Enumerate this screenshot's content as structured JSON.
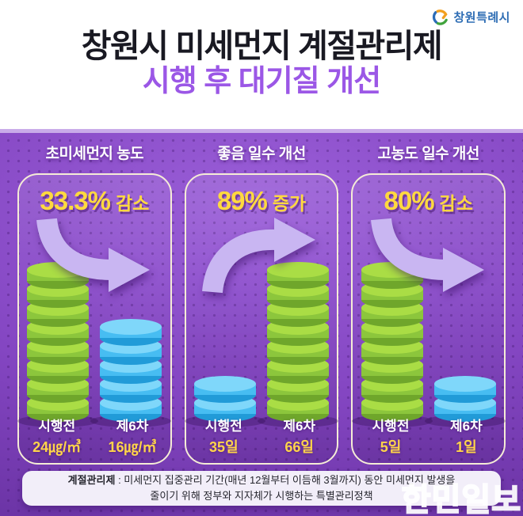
{
  "logo": {
    "text": "창원특례시"
  },
  "title": {
    "line1": "창원시 미세먼지 계절관리제",
    "line2": "시행 후 대기질 개선"
  },
  "panels": [
    {
      "header": "초미세먼지 농도",
      "change": {
        "value": "33.3%",
        "label": "감소",
        "direction": "down"
      },
      "columns": [
        {
          "name": "시행전",
          "value": "24㎍/㎥",
          "coins": 8,
          "color": "green"
        },
        {
          "name": "제6차",
          "value": "16㎍/㎥",
          "coins": 5,
          "color": "blue"
        }
      ]
    },
    {
      "header": "좋음 일수 개선",
      "change": {
        "value": "89%",
        "label": "증가",
        "direction": "up"
      },
      "columns": [
        {
          "name": "시행전",
          "value": "35일",
          "coins": 2,
          "color": "blue"
        },
        {
          "name": "제6차",
          "value": "66일",
          "coins": 8,
          "color": "green"
        }
      ]
    },
    {
      "header": "고농도 일수 개선",
      "change": {
        "value": "80%",
        "label": "감소",
        "direction": "down"
      },
      "columns": [
        {
          "name": "시행전",
          "value": "5일",
          "coins": 8,
          "color": "green"
        },
        {
          "name": "제6차",
          "value": "1일",
          "coins": 2,
          "color": "blue"
        }
      ]
    }
  ],
  "footnote": {
    "term": "계절관리제",
    "line1_rest": " : 미세먼지 집중관리 기간(매년 12월부터 이듬해 3월까지) 동안 미세먼지 발생을",
    "line2": "줄이기 위해 정부와 지자체가 시행하는 특별관리정책"
  },
  "watermark": "한민일보",
  "colors": {
    "stage_purple": "#8446c2",
    "accent_yellow": "#ffd93f",
    "value_yellow": "#ffd44a",
    "card_border": "#f5ecd6",
    "arrow": "#c9b6f2",
    "title": "#191922",
    "subtitle": "#9b57e6",
    "logo_blue": "#2e6db4",
    "coin_green": {
      "top": "#aadd45",
      "side": "#8cc63c",
      "dark": "#6fa62b"
    },
    "coin_blue": {
      "top": "#7fd7fa",
      "side": "#47bdf2",
      "dark": "#219bd8"
    }
  },
  "chart_data": [
    {
      "type": "bar",
      "title": "초미세먼지 농도",
      "categories": [
        "시행전",
        "제6차"
      ],
      "values": [
        24,
        16
      ],
      "unit": "㎍/㎥",
      "annotation": "33.3% 감소",
      "bar_colors": [
        "green",
        "blue"
      ],
      "coin_counts": [
        8,
        5
      ]
    },
    {
      "type": "bar",
      "title": "좋음 일수 개선",
      "categories": [
        "시행전",
        "제6차"
      ],
      "values": [
        35,
        66
      ],
      "unit": "일",
      "annotation": "89% 증가",
      "bar_colors": [
        "blue",
        "green"
      ],
      "coin_counts": [
        2,
        8
      ]
    },
    {
      "type": "bar",
      "title": "고농도 일수 개선",
      "categories": [
        "시행전",
        "제6차"
      ],
      "values": [
        5,
        1
      ],
      "unit": "일",
      "annotation": "80% 감소",
      "bar_colors": [
        "green",
        "blue"
      ],
      "coin_counts": [
        8,
        2
      ]
    }
  ]
}
